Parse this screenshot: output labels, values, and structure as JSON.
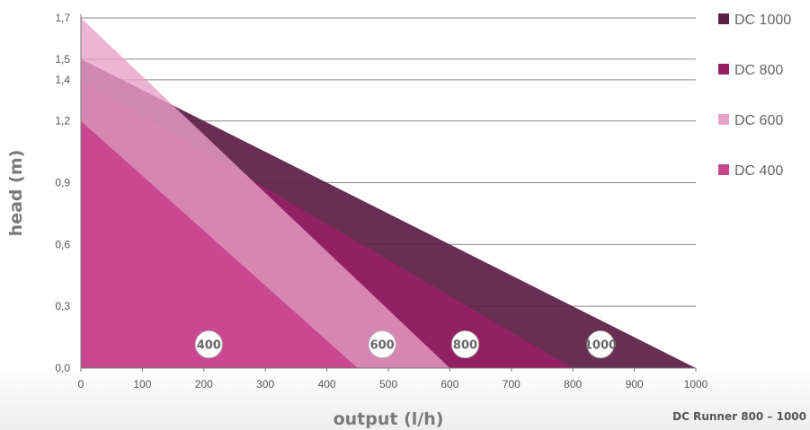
{
  "chart_data": {
    "type": "area",
    "xlabel": "output (l/h)",
    "ylabel": "head (m)",
    "xlim": [
      0,
      1000
    ],
    "ylim": [
      0,
      1.7
    ],
    "x_ticks": [
      0,
      100,
      200,
      300,
      400,
      500,
      600,
      700,
      800,
      900,
      1000
    ],
    "x_tick_labels": [
      "0",
      "100",
      "200",
      "300",
      "400",
      "500",
      "600",
      "700",
      "800",
      "900",
      "1000"
    ],
    "y_ticks": [
      0,
      0.3,
      0.6,
      0.9,
      1.2,
      1.4,
      1.5,
      1.7
    ],
    "y_tick_labels": [
      "0,0",
      "0,3",
      "0,6",
      "0,9",
      "1,2",
      "1,4",
      "1,5",
      "1,7"
    ],
    "grid": "horizontal",
    "legend_position": "right",
    "caption": "DC Runner 800 – 1000",
    "series": [
      {
        "name": "DC 1000",
        "color": "#5c1f45",
        "badge": "1000",
        "badge_at": [
          845,
          0.115
        ],
        "points": [
          [
            0,
            1.5
          ],
          [
            1000,
            0
          ]
        ]
      },
      {
        "name": "DC 800",
        "color": "#962063",
        "badge": "800",
        "badge_at": [
          625,
          0.115
        ],
        "points": [
          [
            0,
            1.4
          ],
          [
            800,
            0
          ]
        ]
      },
      {
        "name": "DC 600",
        "color": "#e8a0c8",
        "badge": "600",
        "badge_at": [
          490,
          0.115
        ],
        "points": [
          [
            0,
            1.7
          ],
          [
            600,
            0
          ]
        ]
      },
      {
        "name": "DC 400",
        "color": "#c8448c",
        "badge": "400",
        "badge_at": [
          208,
          0.115
        ],
        "points": [
          [
            0,
            1.2
          ],
          [
            450,
            0
          ]
        ]
      }
    ]
  }
}
